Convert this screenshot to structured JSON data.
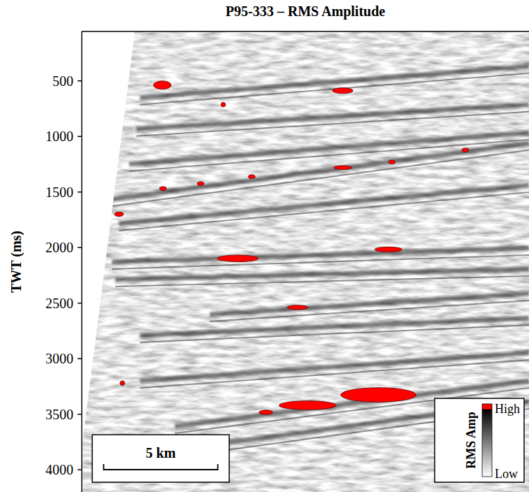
{
  "chart_data": {
    "type": "seismic_section",
    "title": "P95-333 – RMS Amplitude",
    "y_label": "TWT (ms)",
    "ylim": [
      55,
      4200
    ],
    "yticks": [
      500,
      1000,
      1500,
      2000,
      2500,
      3000,
      3500,
      4000
    ],
    "xlim": [
      0,
      19.6
    ],
    "tick_labels": "y",
    "color": "#ff0000",
    "scale_bar": {
      "length": 5,
      "label": "5 km"
    },
    "colorbar": {
      "label": "RMS Amp",
      "high_label": "High",
      "low_label": "Low"
    },
    "reflectors": [
      {
        "x": [
          2.55,
          19.6
        ],
        "twt": [
          651,
          368
        ]
      },
      {
        "x": [
          2.39,
          19.6
        ],
        "twt": [
          934,
          714
        ]
      },
      {
        "x": [
          2.08,
          19.6
        ],
        "twt": [
          1249,
          966
        ]
      },
      {
        "x": [
          1.32,
          19.6
        ],
        "twt": [
          1564,
          1060
        ]
      },
      {
        "x": [
          1.63,
          19.6
        ],
        "twt": [
          1784,
          1438
        ]
      },
      {
        "x": [
          1.32,
          19.6
        ],
        "twt": [
          2130,
          2004
        ]
      },
      {
        "x": [
          1.47,
          19.6
        ],
        "twt": [
          2287,
          2193
        ]
      },
      {
        "x": [
          5.61,
          19.6
        ],
        "twt": [
          2602,
          2413
        ]
      },
      {
        "x": [
          2.55,
          19.6
        ],
        "twt": [
          2791,
          2633
        ]
      },
      {
        "x": [
          2.55,
          19.6
        ],
        "twt": [
          3200,
          2948
        ]
      },
      {
        "x": [
          4.08,
          19.6
        ],
        "twt": [
          3609,
          3200
        ]
      },
      {
        "x": [
          5.0,
          19.6
        ],
        "twt": [
          3797,
          3388
        ]
      }
    ],
    "anomalies": [
      {
        "x": 3.53,
        "twt": 538,
        "length": 0.77,
        "thickness": 75
      },
      {
        "x": 11.44,
        "twt": 588,
        "length": 0.9,
        "thickness": 50
      },
      {
        "x": 6.2,
        "twt": 714,
        "length": 0.2,
        "thickness": 40
      },
      {
        "x": 3.56,
        "twt": 1469,
        "length": 0.3,
        "thickness": 35
      },
      {
        "x": 5.21,
        "twt": 1425,
        "length": 0.3,
        "thickness": 35
      },
      {
        "x": 7.45,
        "twt": 1362,
        "length": 0.3,
        "thickness": 35
      },
      {
        "x": 11.44,
        "twt": 1280,
        "length": 0.8,
        "thickness": 35
      },
      {
        "x": 13.59,
        "twt": 1230,
        "length": 0.3,
        "thickness": 35
      },
      {
        "x": 16.81,
        "twt": 1123,
        "length": 0.3,
        "thickness": 35
      },
      {
        "x": 1.63,
        "twt": 1700,
        "length": 0.4,
        "thickness": 40
      },
      {
        "x": 6.84,
        "twt": 2098,
        "length": 1.8,
        "thickness": 60
      },
      {
        "x": 13.44,
        "twt": 2017,
        "length": 1.2,
        "thickness": 45
      },
      {
        "x": 9.45,
        "twt": 2539,
        "length": 0.9,
        "thickness": 40
      },
      {
        "x": 9.9,
        "twt": 3420,
        "length": 2.5,
        "thickness": 80
      },
      {
        "x": 13.0,
        "twt": 3326,
        "length": 3.3,
        "thickness": 130
      },
      {
        "x": 8.07,
        "twt": 3483,
        "length": 0.6,
        "thickness": 40
      },
      {
        "x": 1.78,
        "twt": 3220,
        "length": 0.2,
        "thickness": 40
      }
    ]
  }
}
